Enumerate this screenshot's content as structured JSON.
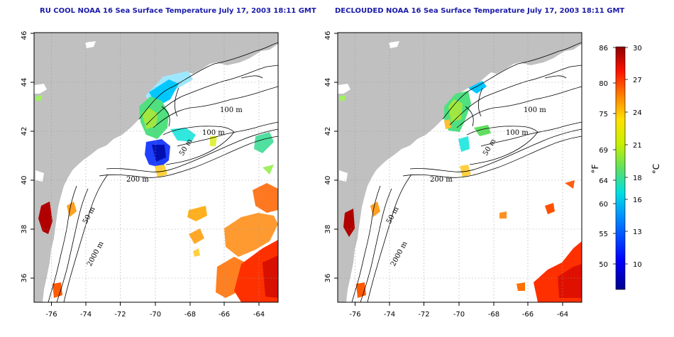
{
  "titles": {
    "left": "RU COOL NOAA 16 Sea Surface Temperature July 17, 2003 18:11 GMT",
    "right": "DECLOUDED NOAA 16 Sea Surface Temperature July 17, 2003 18:11 GMT"
  },
  "map": {
    "lon_ticks": [
      "-76",
      "-74",
      "-72",
      "-70",
      "-68",
      "-66",
      "-64"
    ],
    "lat_ticks": [
      "36",
      "38",
      "40",
      "42",
      "44",
      "46"
    ],
    "lon_range": [
      -77.2,
      -62.8
    ],
    "lat_range": [
      35,
      46
    ],
    "contour_labels": [
      "100 m",
      "100 m",
      "50 m",
      "200 m",
      "50 m",
      "2000 m"
    ],
    "grid": "dotted"
  },
  "colorbar": {
    "fahrenheit_ticks": [
      "86",
      "80",
      "75",
      "69",
      "64",
      "60",
      "55",
      "50"
    ],
    "celsius_ticks": [
      "30",
      "27",
      "24",
      "21",
      "18",
      "16",
      "13",
      "10"
    ],
    "fahrenheit_unit": "°F",
    "celsius_unit": "°C",
    "range_c": [
      7,
      30
    ]
  },
  "colors": {
    "land": "#c0c0c0",
    "title": "#1a1aa8"
  }
}
